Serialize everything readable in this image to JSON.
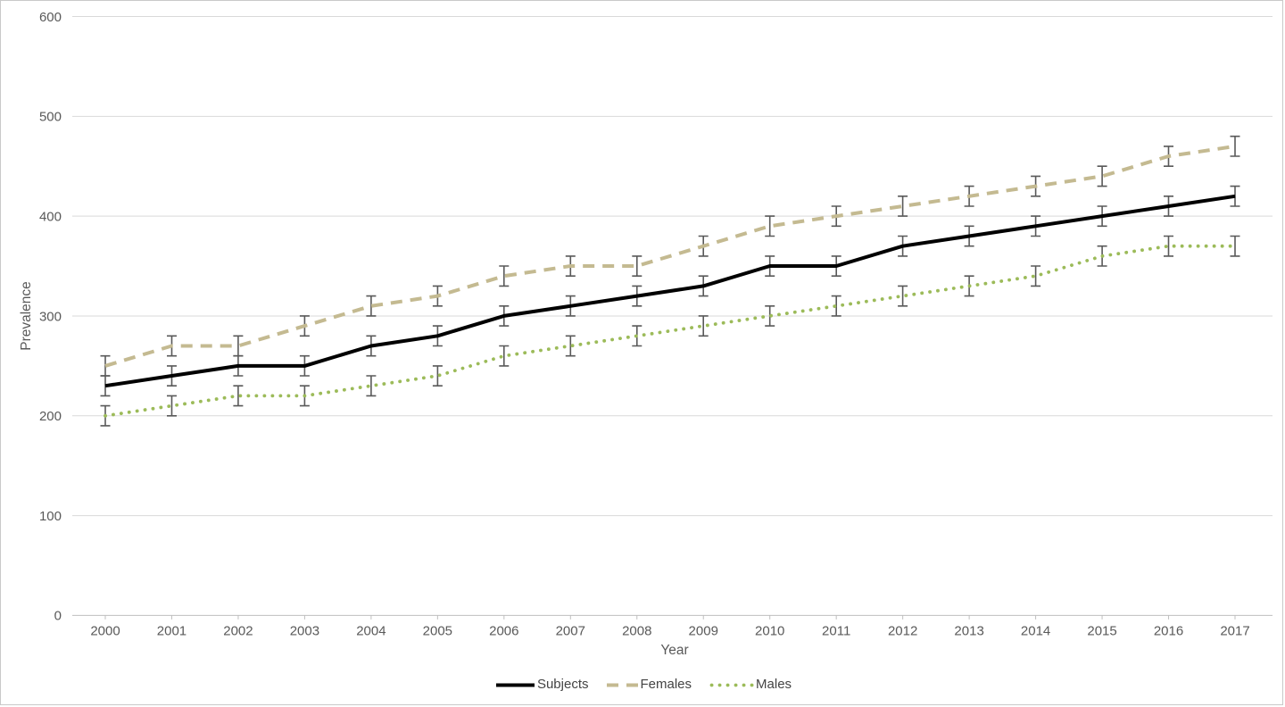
{
  "chart_data": {
    "type": "line",
    "title": "",
    "xlabel": "Year",
    "ylabel": "Prevalence",
    "x": [
      2000,
      2001,
      2002,
      2003,
      2004,
      2005,
      2006,
      2007,
      2008,
      2009,
      2010,
      2011,
      2012,
      2013,
      2014,
      2015,
      2016,
      2017
    ],
    "series": [
      {
        "name": "Subjects",
        "style": "solid",
        "color": "#000000",
        "error": 10,
        "values": [
          230,
          240,
          250,
          250,
          270,
          280,
          300,
          310,
          320,
          330,
          350,
          350,
          370,
          380,
          390,
          400,
          410,
          420
        ]
      },
      {
        "name": "Females",
        "style": "dashed",
        "color": "#C4BA91",
        "error": 10,
        "values": [
          250,
          270,
          270,
          290,
          310,
          320,
          340,
          350,
          350,
          370,
          390,
          400,
          410,
          420,
          430,
          440,
          460,
          470
        ]
      },
      {
        "name": "Males",
        "style": "dotted",
        "color": "#9CBB59",
        "error": 10,
        "values": [
          200,
          210,
          220,
          220,
          230,
          240,
          260,
          270,
          280,
          290,
          300,
          310,
          320,
          330,
          340,
          360,
          370,
          370
        ]
      }
    ],
    "ylim": [
      0,
      600
    ],
    "yticks": [
      0,
      100,
      200,
      300,
      400,
      500,
      600
    ],
    "grid": true,
    "legend_position": "bottom",
    "gridline_color": "#D9D9D9",
    "axis_line_color": "#BFBFBF",
    "error_bar_color": "#595959",
    "axis_text_color": "#595959"
  }
}
